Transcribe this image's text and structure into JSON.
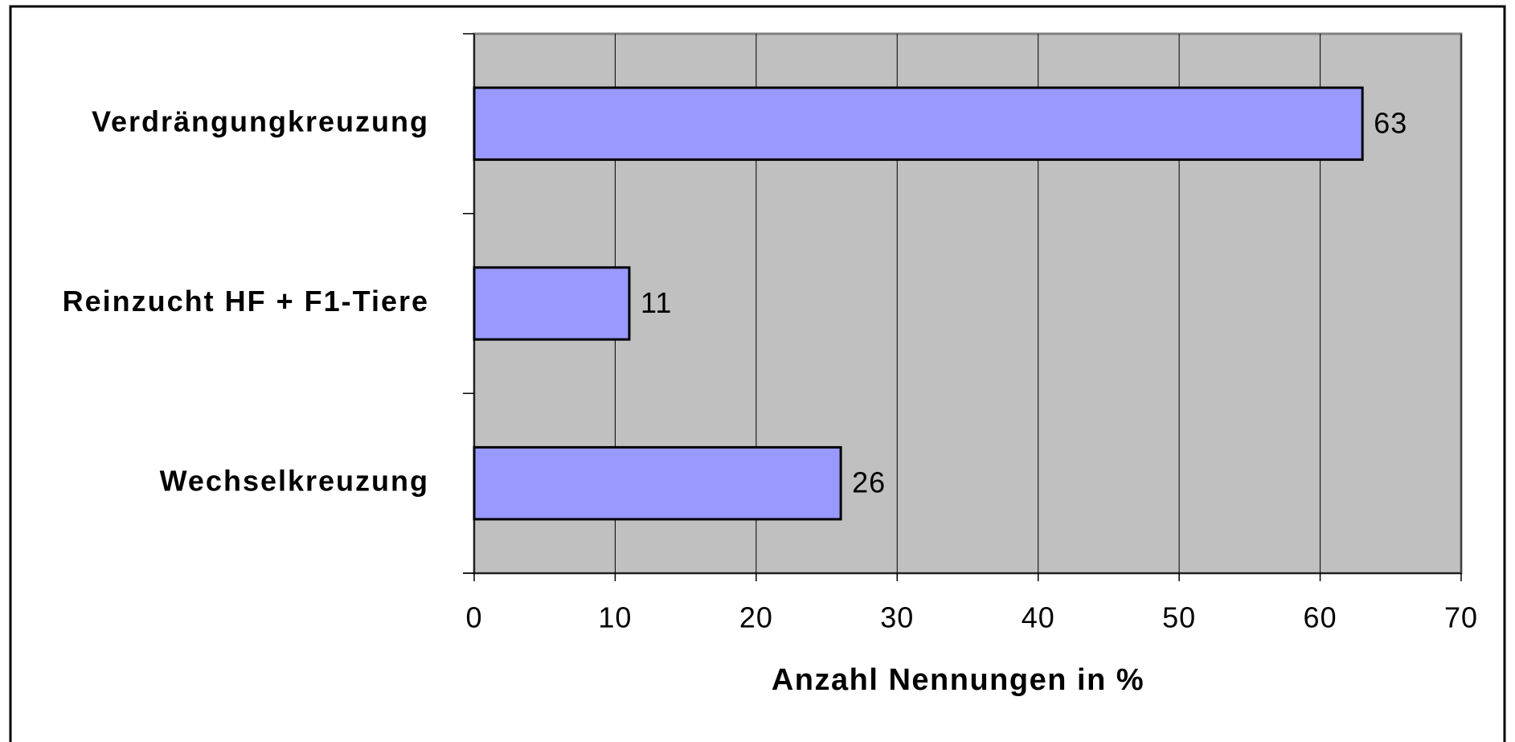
{
  "chart_data": {
    "type": "bar",
    "orientation": "horizontal",
    "categories": [
      "Verdrängungkreuzung",
      "Reinzucht HF + F1-Tiere",
      "Wechselkreuzung"
    ],
    "values": [
      63,
      11,
      26
    ],
    "color": "#9999ff",
    "xlabel": "Anzahl Nennungen in %",
    "xlim": [
      0,
      70
    ],
    "xticks": [
      0,
      10,
      20,
      30,
      40,
      50,
      60,
      70
    ],
    "grid": true
  }
}
